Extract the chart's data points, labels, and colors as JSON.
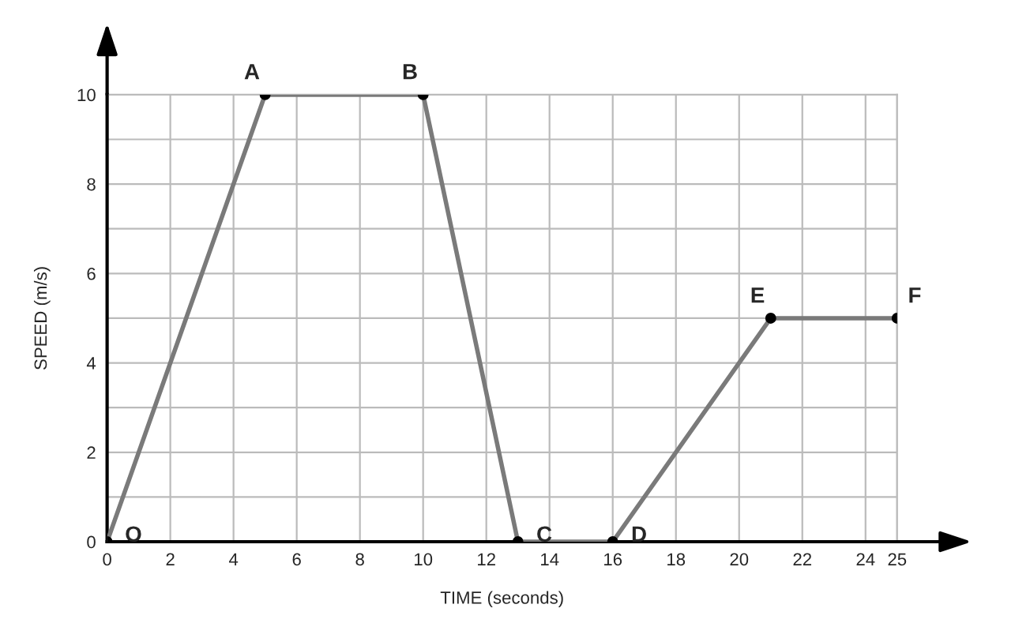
{
  "chart_data": {
    "type": "line",
    "xlabel": "TIME (seconds)",
    "ylabel": "SPEED (m/s)",
    "x": [
      0,
      5,
      10,
      13,
      16,
      21,
      25
    ],
    "series": [
      {
        "color": "#7a7a7a",
        "values": [
          0,
          10,
          10,
          0,
          0,
          5,
          5
        ]
      }
    ],
    "marker": "circle",
    "line_style": "solid",
    "grid": true,
    "legend": false,
    "xlim": [
      0,
      25
    ],
    "ylim": [
      0,
      10
    ],
    "xticks": [
      0,
      2,
      4,
      6,
      8,
      10,
      12,
      14,
      16,
      18,
      20,
      22,
      24,
      25
    ],
    "yticks": [
      0,
      {
        "value": 1,
        "label": null
      },
      2,
      {
        "value": 3,
        "label": null
      },
      4,
      {
        "value": 5,
        "label": null
      },
      6,
      {
        "value": 7,
        "label": null
      },
      8,
      {
        "value": 9,
        "label": null
      },
      10
    ],
    "annotations": [
      {
        "text": "O",
        "x": 0,
        "y": 0
      },
      {
        "text": "A",
        "x": 5,
        "y": 10
      },
      {
        "text": "B",
        "x": 10,
        "y": 10
      },
      {
        "text": "C",
        "x": 13,
        "y": 0
      },
      {
        "text": "D",
        "x": 16,
        "y": 0
      },
      {
        "text": "E",
        "x": 21,
        "y": 5
      },
      {
        "text": "F",
        "x": 25,
        "y": 5
      }
    ]
  }
}
